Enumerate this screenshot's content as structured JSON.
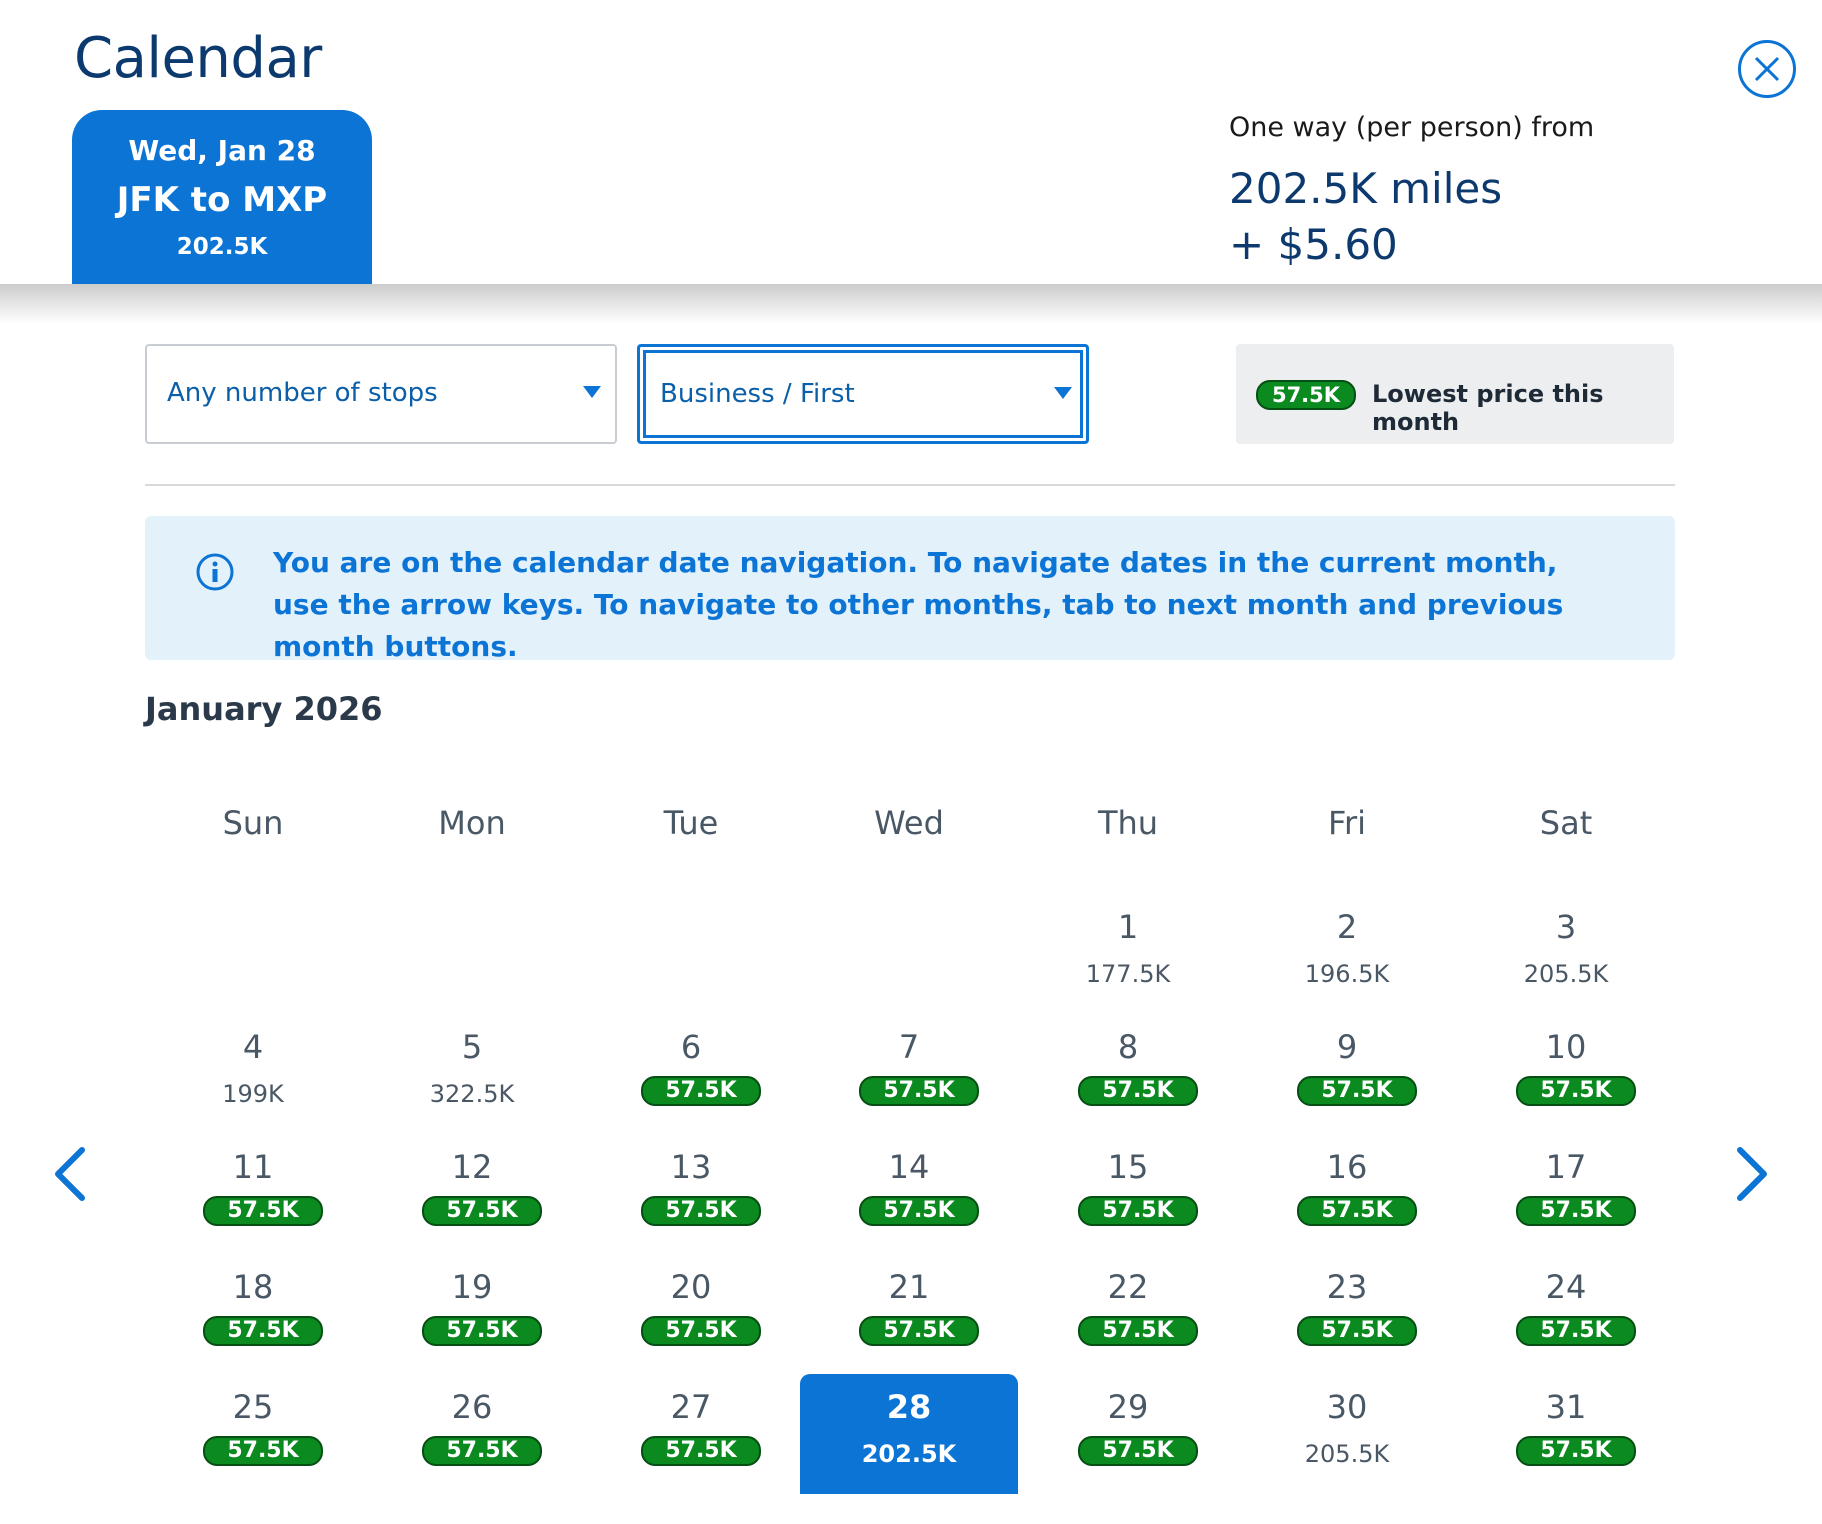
{
  "header": {
    "title": "Calendar",
    "close_icon": "close-circle-icon",
    "selected_tab": {
      "date": "Wed, Jan 28",
      "route": "JFK to MXP",
      "price": "202.5K"
    },
    "fare": {
      "label": "One way (per person) from",
      "miles": "202.5K miles",
      "cash": "+ $5.60"
    }
  },
  "filters": {
    "stops": {
      "value": "Any number of stops"
    },
    "cabin": {
      "value": "Business / First"
    }
  },
  "legend": {
    "pill": "57.5K",
    "text": "Lowest price this month"
  },
  "info": {
    "icon": "info-icon",
    "message": "You are on the calendar date navigation. To navigate dates in the current month, use the arrow keys. To navigate to other months, tab to next month and previous month buttons."
  },
  "calendar": {
    "month": "January 2026",
    "weekdays": [
      "Sun",
      "Mon",
      "Tue",
      "Wed",
      "Thu",
      "Fri",
      "Sat"
    ],
    "days": [
      {
        "d": "1",
        "p": "177.5K",
        "low": false
      },
      {
        "d": "2",
        "p": "196.5K",
        "low": false
      },
      {
        "d": "3",
        "p": "205.5K",
        "low": false
      },
      {
        "d": "4",
        "p": "199K",
        "low": false
      },
      {
        "d": "5",
        "p": "322.5K",
        "low": false
      },
      {
        "d": "6",
        "p": "57.5K",
        "low": true
      },
      {
        "d": "7",
        "p": "57.5K",
        "low": true
      },
      {
        "d": "8",
        "p": "57.5K",
        "low": true
      },
      {
        "d": "9",
        "p": "57.5K",
        "low": true
      },
      {
        "d": "10",
        "p": "57.5K",
        "low": true
      },
      {
        "d": "11",
        "p": "57.5K",
        "low": true
      },
      {
        "d": "12",
        "p": "57.5K",
        "low": true
      },
      {
        "d": "13",
        "p": "57.5K",
        "low": true
      },
      {
        "d": "14",
        "p": "57.5K",
        "low": true
      },
      {
        "d": "15",
        "p": "57.5K",
        "low": true
      },
      {
        "d": "16",
        "p": "57.5K",
        "low": true
      },
      {
        "d": "17",
        "p": "57.5K",
        "low": true
      },
      {
        "d": "18",
        "p": "57.5K",
        "low": true
      },
      {
        "d": "19",
        "p": "57.5K",
        "low": true
      },
      {
        "d": "20",
        "p": "57.5K",
        "low": true
      },
      {
        "d": "21",
        "p": "57.5K",
        "low": true
      },
      {
        "d": "22",
        "p": "57.5K",
        "low": true
      },
      {
        "d": "23",
        "p": "57.5K",
        "low": true
      },
      {
        "d": "24",
        "p": "57.5K",
        "low": true
      },
      {
        "d": "25",
        "p": "57.5K",
        "low": true
      },
      {
        "d": "26",
        "p": "57.5K",
        "low": true
      },
      {
        "d": "27",
        "p": "57.5K",
        "low": true
      },
      {
        "d": "28",
        "p": "202.5K",
        "low": false,
        "selected": true
      },
      {
        "d": "29",
        "p": "57.5K",
        "low": true
      },
      {
        "d": "30",
        "p": "205.5K",
        "low": false
      },
      {
        "d": "31",
        "p": "57.5K",
        "low": true
      }
    ],
    "prev_icon": "chevron-left-icon",
    "next_icon": "chevron-right-icon"
  },
  "colors": {
    "accent": "#0b74d4",
    "navy": "#0d3a6e",
    "low_price": "#0a8a1f",
    "info_bg": "#e3f1fb"
  }
}
